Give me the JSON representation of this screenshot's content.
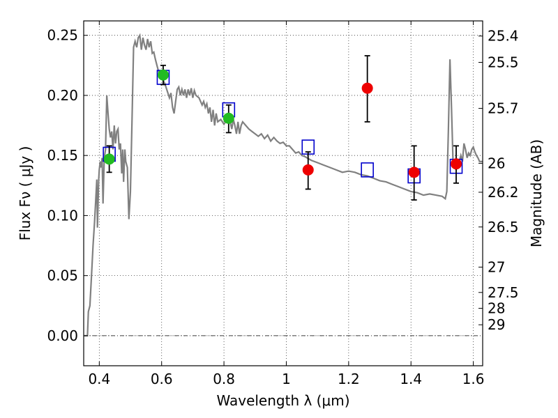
{
  "chart_data": {
    "type": "scatter",
    "title": "",
    "xlabel": "Wavelength  λ (μm)",
    "ylabel": "Flux  Fν  ( μJy )",
    "ylabel2": "Magnitude (AB)",
    "xlim": [
      0.35,
      1.63
    ],
    "ylim": [
      -0.025,
      0.262
    ],
    "x_ticks": [
      0.4,
      0.6,
      0.8,
      1.0,
      1.2,
      1.4,
      1.6
    ],
    "x_tick_labels": [
      "0.4",
      "0.6",
      "0.8",
      "1",
      "1.2",
      "1.4",
      "1.6"
    ],
    "y_ticks": [
      0.0,
      0.05,
      0.1,
      0.15,
      0.2,
      0.25
    ],
    "y_tick_labels": [
      "0.00",
      "0.05",
      "0.10",
      "0.15",
      "0.20",
      "0.25"
    ],
    "right_ticks": [
      {
        "label": "25.4",
        "flux": 0.2494
      },
      {
        "label": "25.5",
        "flux": 0.2275
      },
      {
        "label": "25.7",
        "flux": 0.1892
      },
      {
        "label": "26",
        "flux": 0.1435
      },
      {
        "label": "26.2",
        "flux": 0.1194
      },
      {
        "label": "26.5",
        "flux": 0.0905
      },
      {
        "label": "27",
        "flux": 0.0571
      },
      {
        "label": "27.5",
        "flux": 0.036
      },
      {
        "label": "28",
        "flux": 0.0228
      },
      {
        "label": "29",
        "flux": 0.0091
      }
    ],
    "grid": true,
    "series": [
      {
        "kind": "line",
        "color": "#808080",
        "points": [
          [
            0.352,
            0.0
          ],
          [
            0.362,
            0.0
          ],
          [
            0.365,
            0.02
          ],
          [
            0.37,
            0.025
          ],
          [
            0.375,
            0.05
          ],
          [
            0.38,
            0.075
          ],
          [
            0.385,
            0.095
          ],
          [
            0.39,
            0.12
          ],
          [
            0.392,
            0.13
          ],
          [
            0.394,
            0.09
          ],
          [
            0.398,
            0.13
          ],
          [
            0.4,
            0.138
          ],
          [
            0.403,
            0.145
          ],
          [
            0.406,
            0.14
          ],
          [
            0.409,
            0.148
          ],
          [
            0.412,
            0.11
          ],
          [
            0.416,
            0.148
          ],
          [
            0.42,
            0.155
          ],
          [
            0.424,
            0.2
          ],
          [
            0.428,
            0.185
          ],
          [
            0.432,
            0.172
          ],
          [
            0.436,
            0.165
          ],
          [
            0.44,
            0.17
          ],
          [
            0.444,
            0.155
          ],
          [
            0.448,
            0.175
          ],
          [
            0.452,
            0.16
          ],
          [
            0.456,
            0.17
          ],
          [
            0.46,
            0.172
          ],
          [
            0.464,
            0.155
          ],
          [
            0.468,
            0.16
          ],
          [
            0.472,
            0.135
          ],
          [
            0.475,
            0.155
          ],
          [
            0.478,
            0.128
          ],
          [
            0.482,
            0.155
          ],
          [
            0.485,
            0.145
          ],
          [
            0.49,
            0.14
          ],
          [
            0.495,
            0.097
          ],
          [
            0.5,
            0.12
          ],
          [
            0.505,
            0.18
          ],
          [
            0.51,
            0.24
          ],
          [
            0.515,
            0.245
          ],
          [
            0.52,
            0.24
          ],
          [
            0.525,
            0.248
          ],
          [
            0.53,
            0.25
          ],
          [
            0.535,
            0.238
          ],
          [
            0.54,
            0.248
          ],
          [
            0.545,
            0.242
          ],
          [
            0.55,
            0.238
          ],
          [
            0.555,
            0.247
          ],
          [
            0.56,
            0.24
          ],
          [
            0.565,
            0.245
          ],
          [
            0.57,
            0.235
          ],
          [
            0.575,
            0.236
          ],
          [
            0.58,
            0.23
          ],
          [
            0.585,
            0.225
          ],
          [
            0.59,
            0.22
          ],
          [
            0.6,
            0.215
          ],
          [
            0.61,
            0.21
          ],
          [
            0.62,
            0.202
          ],
          [
            0.625,
            0.198
          ],
          [
            0.63,
            0.202
          ],
          [
            0.635,
            0.19
          ],
          [
            0.64,
            0.185
          ],
          [
            0.645,
            0.195
          ],
          [
            0.65,
            0.205
          ],
          [
            0.655,
            0.207
          ],
          [
            0.66,
            0.2
          ],
          [
            0.665,
            0.205
          ],
          [
            0.67,
            0.2
          ],
          [
            0.675,
            0.205
          ],
          [
            0.68,
            0.198
          ],
          [
            0.685,
            0.205
          ],
          [
            0.69,
            0.2
          ],
          [
            0.695,
            0.206
          ],
          [
            0.7,
            0.198
          ],
          [
            0.705,
            0.204
          ],
          [
            0.71,
            0.2
          ],
          [
            0.72,
            0.198
          ],
          [
            0.73,
            0.192
          ],
          [
            0.735,
            0.195
          ],
          [
            0.74,
            0.19
          ],
          [
            0.745,
            0.193
          ],
          [
            0.75,
            0.185
          ],
          [
            0.755,
            0.19
          ],
          [
            0.76,
            0.178
          ],
          [
            0.765,
            0.188
          ],
          [
            0.77,
            0.175
          ],
          [
            0.775,
            0.185
          ],
          [
            0.78,
            0.178
          ],
          [
            0.79,
            0.18
          ],
          [
            0.8,
            0.176
          ],
          [
            0.81,
            0.18
          ],
          [
            0.815,
            0.183
          ],
          [
            0.82,
            0.178
          ],
          [
            0.825,
            0.172
          ],
          [
            0.83,
            0.18
          ],
          [
            0.835,
            0.175
          ],
          [
            0.84,
            0.168
          ],
          [
            0.845,
            0.178
          ],
          [
            0.85,
            0.168
          ],
          [
            0.855,
            0.175
          ],
          [
            0.86,
            0.178
          ],
          [
            0.87,
            0.175
          ],
          [
            0.88,
            0.172
          ],
          [
            0.89,
            0.17
          ],
          [
            0.9,
            0.168
          ],
          [
            0.91,
            0.166
          ],
          [
            0.92,
            0.168
          ],
          [
            0.93,
            0.164
          ],
          [
            0.94,
            0.167
          ],
          [
            0.95,
            0.162
          ],
          [
            0.96,
            0.165
          ],
          [
            0.97,
            0.162
          ],
          [
            0.98,
            0.16
          ],
          [
            0.99,
            0.161
          ],
          [
            1.0,
            0.158
          ],
          [
            1.01,
            0.158
          ],
          [
            1.02,
            0.155
          ],
          [
            1.03,
            0.152
          ],
          [
            1.04,
            0.153
          ],
          [
            1.05,
            0.15
          ],
          [
            1.06,
            0.149
          ],
          [
            1.08,
            0.146
          ],
          [
            1.1,
            0.144
          ],
          [
            1.12,
            0.142
          ],
          [
            1.14,
            0.14
          ],
          [
            1.16,
            0.138
          ],
          [
            1.18,
            0.136
          ],
          [
            1.2,
            0.137
          ],
          [
            1.22,
            0.136
          ],
          [
            1.24,
            0.134
          ],
          [
            1.26,
            0.133
          ],
          [
            1.28,
            0.131
          ],
          [
            1.3,
            0.129
          ],
          [
            1.32,
            0.128
          ],
          [
            1.34,
            0.126
          ],
          [
            1.36,
            0.124
          ],
          [
            1.38,
            0.122
          ],
          [
            1.4,
            0.12
          ],
          [
            1.42,
            0.119
          ],
          [
            1.44,
            0.117
          ],
          [
            1.46,
            0.118
          ],
          [
            1.48,
            0.117
          ],
          [
            1.5,
            0.116
          ],
          [
            1.51,
            0.114
          ],
          [
            1.515,
            0.12
          ],
          [
            1.52,
            0.17
          ],
          [
            1.525,
            0.23
          ],
          [
            1.53,
            0.19
          ],
          [
            1.535,
            0.145
          ],
          [
            1.54,
            0.14
          ],
          [
            1.545,
            0.138
          ],
          [
            1.55,
            0.142
          ],
          [
            1.555,
            0.145
          ],
          [
            1.56,
            0.15
          ],
          [
            1.565,
            0.145
          ],
          [
            1.57,
            0.16
          ],
          [
            1.575,
            0.155
          ],
          [
            1.58,
            0.148
          ],
          [
            1.585,
            0.152
          ],
          [
            1.59,
            0.15
          ],
          [
            1.595,
            0.155
          ],
          [
            1.6,
            0.157
          ],
          [
            1.605,
            0.153
          ],
          [
            1.61,
            0.15
          ],
          [
            1.615,
            0.148
          ],
          [
            1.62,
            0.145
          ],
          [
            1.63,
            0.145
          ]
        ]
      },
      {
        "kind": "squares",
        "color": "#0000cc",
        "points": [
          [
            0.432,
            0.151
          ],
          [
            0.605,
            0.215
          ],
          [
            0.815,
            0.188
          ],
          [
            1.07,
            0.157
          ],
          [
            1.26,
            0.138
          ],
          [
            1.41,
            0.133
          ],
          [
            1.545,
            0.141
          ]
        ]
      },
      {
        "kind": "errorbars",
        "color": "#000000",
        "points": [
          [
            0.432,
            0.136,
            0.158
          ],
          [
            0.605,
            0.209,
            0.225
          ],
          [
            0.815,
            0.169,
            0.192
          ],
          [
            1.07,
            0.122,
            0.153
          ],
          [
            1.26,
            0.178,
            0.233
          ],
          [
            1.41,
            0.113,
            0.158
          ],
          [
            1.545,
            0.127,
            0.158
          ]
        ]
      },
      {
        "kind": "circles",
        "color": "#22bb22",
        "points": [
          [
            0.432,
            0.147
          ],
          [
            0.605,
            0.217
          ],
          [
            0.815,
            0.181
          ]
        ]
      },
      {
        "kind": "circles",
        "color": "#ee0000",
        "points": [
          [
            1.07,
            0.138
          ],
          [
            1.26,
            0.206
          ],
          [
            1.41,
            0.136
          ],
          [
            1.545,
            0.143
          ]
        ]
      }
    ],
    "zero_line": 0.0
  }
}
